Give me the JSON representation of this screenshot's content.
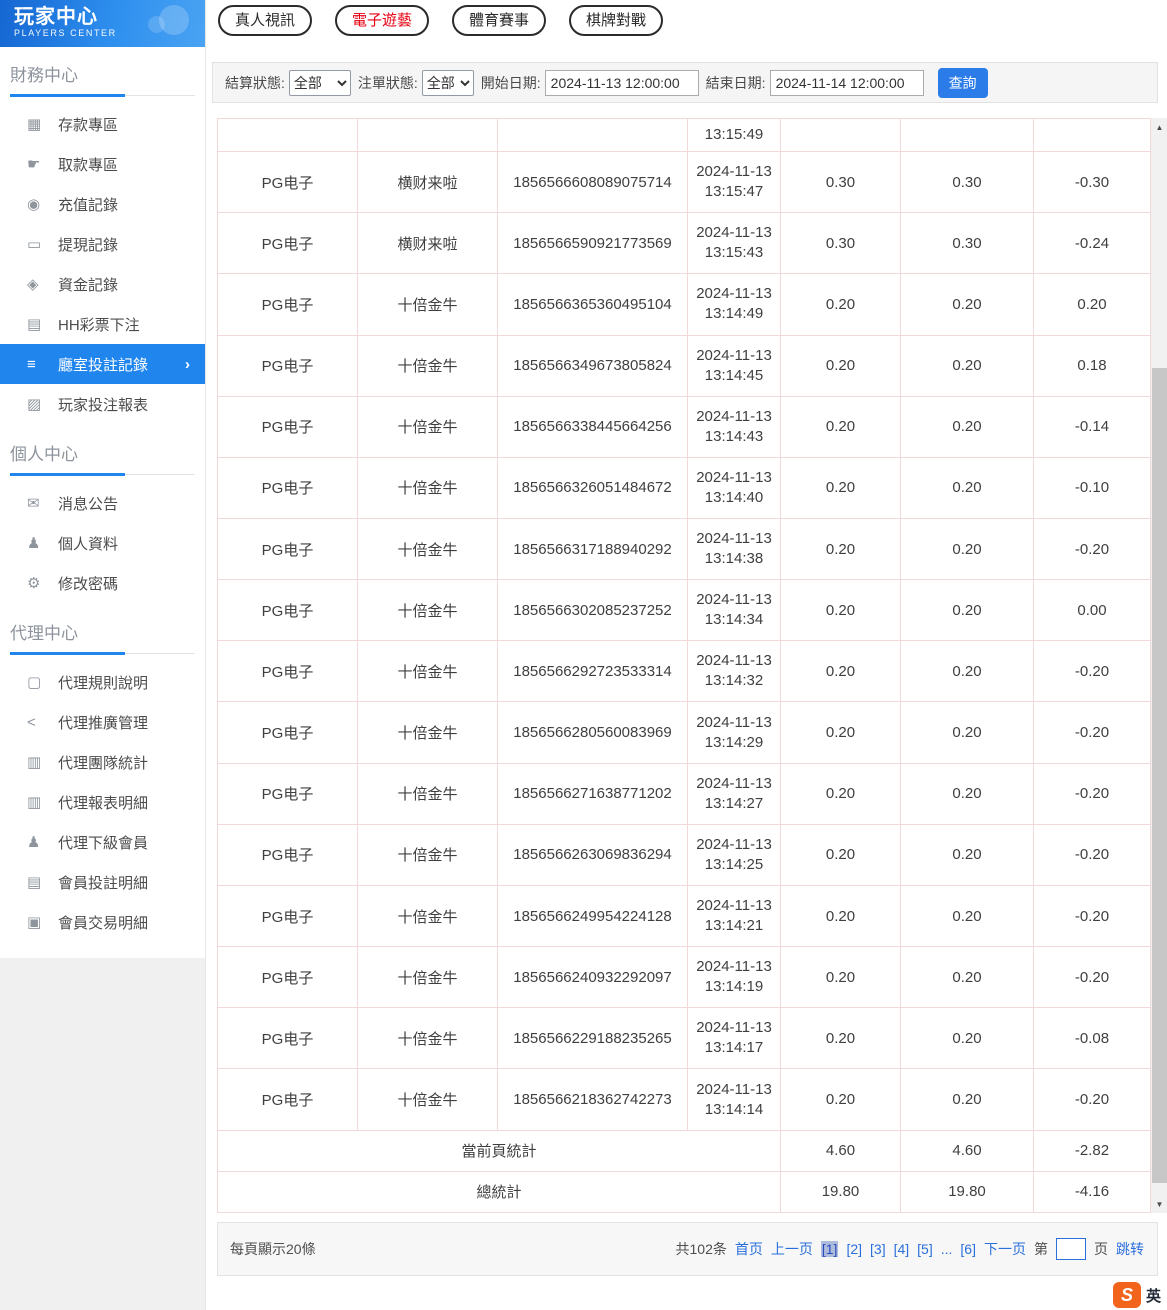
{
  "sidebar": {
    "logo": {
      "title": "玩家中心",
      "subtitle": "PLAYERS CENTER"
    },
    "sections": [
      {
        "title": "財務中心",
        "items": [
          {
            "label": "存款專區",
            "icon": "deposit-card-icon",
            "glyph": "▦"
          },
          {
            "label": "取款專區",
            "icon": "withdraw-hand-icon",
            "glyph": "☛"
          },
          {
            "label": "充值記錄",
            "icon": "recharge-moneybag-icon",
            "glyph": "◉"
          },
          {
            "label": "提現記錄",
            "icon": "withdrawal-wallet-icon",
            "glyph": "▭"
          },
          {
            "label": "資金記錄",
            "icon": "funds-purse-icon",
            "glyph": "◈"
          },
          {
            "label": "HH彩票下注",
            "icon": "lottery-doc-icon",
            "glyph": "▤"
          },
          {
            "label": "廳室投註記錄",
            "icon": "bet-records-list-icon",
            "glyph": "≡",
            "active": true,
            "arrow": "›"
          },
          {
            "label": "玩家投注報表",
            "icon": "report-chart-icon",
            "glyph": "▨"
          }
        ]
      },
      {
        "title": "個人中心",
        "items": [
          {
            "label": "消息公告",
            "icon": "bell-icon",
            "glyph": "✉"
          },
          {
            "label": "個人資料",
            "icon": "person-icon",
            "glyph": "♟"
          },
          {
            "label": "修改密碼",
            "icon": "gear-icon",
            "glyph": "⚙"
          }
        ]
      },
      {
        "title": "代理中心",
        "items": [
          {
            "label": "代理規則說明",
            "icon": "agent-rules-doc-icon",
            "glyph": "▢"
          },
          {
            "label": "代理推廣管理",
            "icon": "agent-promo-share-icon",
            "glyph": "<"
          },
          {
            "label": "代理團隊統計",
            "icon": "agent-team-stats-icon",
            "glyph": "▥"
          },
          {
            "label": "代理報表明細",
            "icon": "agent-report-icon",
            "glyph": "▥"
          },
          {
            "label": "代理下級會員",
            "icon": "agent-members-icon",
            "glyph": "♟"
          },
          {
            "label": "會員投註明細",
            "icon": "member-bets-icon",
            "glyph": "▤"
          },
          {
            "label": "會員交易明細",
            "icon": "member-transactions-icon",
            "glyph": "▣"
          }
        ]
      }
    ]
  },
  "tabs": [
    {
      "label": "真人視訊",
      "active": false
    },
    {
      "label": "電子遊藝",
      "active": true
    },
    {
      "label": "體育賽事",
      "active": false
    },
    {
      "label": "棋牌對戰",
      "active": false
    }
  ],
  "filters": {
    "settle_label": "結算狀態:",
    "settle_value": "全部",
    "order_label": "注單狀態:",
    "order_value": "全部",
    "start_label": "開始日期:",
    "start_value": "2024-11-13 12:00:00",
    "end_label": "結束日期:",
    "end_value": "2024-11-14 12:00:00",
    "search_label": "查詢"
  },
  "table": {
    "partial_row": {
      "time": "13:15:49"
    },
    "rows": [
      {
        "provider": "PG电子",
        "game": "横财来啦",
        "order_id": "1856566608089075714",
        "date": "2024-11-13",
        "time": "13:15:47",
        "bet": "0.30",
        "valid": "0.30",
        "profit": "-0.30"
      },
      {
        "provider": "PG电子",
        "game": "横财来啦",
        "order_id": "1856566590921773569",
        "date": "2024-11-13",
        "time": "13:15:43",
        "bet": "0.30",
        "valid": "0.30",
        "profit": "-0.24"
      },
      {
        "provider": "PG电子",
        "game": "十倍金牛",
        "order_id": "1856566365360495104",
        "date": "2024-11-13",
        "time": "13:14:49",
        "bet": "0.20",
        "valid": "0.20",
        "profit": "0.20"
      },
      {
        "provider": "PG电子",
        "game": "十倍金牛",
        "order_id": "1856566349673805824",
        "date": "2024-11-13",
        "time": "13:14:45",
        "bet": "0.20",
        "valid": "0.20",
        "profit": "0.18"
      },
      {
        "provider": "PG电子",
        "game": "十倍金牛",
        "order_id": "1856566338445664256",
        "date": "2024-11-13",
        "time": "13:14:43",
        "bet": "0.20",
        "valid": "0.20",
        "profit": "-0.14"
      },
      {
        "provider": "PG电子",
        "game": "十倍金牛",
        "order_id": "1856566326051484672",
        "date": "2024-11-13",
        "time": "13:14:40",
        "bet": "0.20",
        "valid": "0.20",
        "profit": "-0.10"
      },
      {
        "provider": "PG电子",
        "game": "十倍金牛",
        "order_id": "1856566317188940292",
        "date": "2024-11-13",
        "time": "13:14:38",
        "bet": "0.20",
        "valid": "0.20",
        "profit": "-0.20"
      },
      {
        "provider": "PG电子",
        "game": "十倍金牛",
        "order_id": "1856566302085237252",
        "date": "2024-11-13",
        "time": "13:14:34",
        "bet": "0.20",
        "valid": "0.20",
        "profit": "0.00"
      },
      {
        "provider": "PG电子",
        "game": "十倍金牛",
        "order_id": "1856566292723533314",
        "date": "2024-11-13",
        "time": "13:14:32",
        "bet": "0.20",
        "valid": "0.20",
        "profit": "-0.20"
      },
      {
        "provider": "PG电子",
        "game": "十倍金牛",
        "order_id": "1856566280560083969",
        "date": "2024-11-13",
        "time": "13:14:29",
        "bet": "0.20",
        "valid": "0.20",
        "profit": "-0.20"
      },
      {
        "provider": "PG电子",
        "game": "十倍金牛",
        "order_id": "1856566271638771202",
        "date": "2024-11-13",
        "time": "13:14:27",
        "bet": "0.20",
        "valid": "0.20",
        "profit": "-0.20"
      },
      {
        "provider": "PG电子",
        "game": "十倍金牛",
        "order_id": "1856566263069836294",
        "date": "2024-11-13",
        "time": "13:14:25",
        "bet": "0.20",
        "valid": "0.20",
        "profit": "-0.20"
      },
      {
        "provider": "PG电子",
        "game": "十倍金牛",
        "order_id": "1856566249954224128",
        "date": "2024-11-13",
        "time": "13:14:21",
        "bet": "0.20",
        "valid": "0.20",
        "profit": "-0.20"
      },
      {
        "provider": "PG电子",
        "game": "十倍金牛",
        "order_id": "1856566240932292097",
        "date": "2024-11-13",
        "time": "13:14:19",
        "bet": "0.20",
        "valid": "0.20",
        "profit": "-0.20"
      },
      {
        "provider": "PG电子",
        "game": "十倍金牛",
        "order_id": "1856566229188235265",
        "date": "2024-11-13",
        "time": "13:14:17",
        "bet": "0.20",
        "valid": "0.20",
        "profit": "-0.08"
      },
      {
        "provider": "PG电子",
        "game": "十倍金牛",
        "order_id": "1856566218362742273",
        "date": "2024-11-13",
        "time": "13:14:14",
        "bet": "0.20",
        "valid": "0.20",
        "profit": "-0.20"
      }
    ],
    "summary": [
      {
        "label": "當前頁統計",
        "bet": "4.60",
        "valid": "4.60",
        "profit": "-2.82"
      },
      {
        "label": "總統計",
        "bet": "19.80",
        "valid": "19.80",
        "profit": "-4.16"
      }
    ]
  },
  "icons": {
    "scroll_up": "▲",
    "scroll_down": "▼"
  },
  "pagination": {
    "per_page": "每頁顯示20條",
    "total_label": "共102条",
    "first_label": "首页",
    "prev_label": "上一页",
    "pages": [
      {
        "label": "[1]",
        "current": true
      },
      {
        "label": "[2]"
      },
      {
        "label": "[3]"
      },
      {
        "label": "[4]"
      },
      {
        "label": "[5]"
      },
      {
        "label": "..."
      },
      {
        "label": "[6]"
      }
    ],
    "next_label": "下一页",
    "jump_prefix": "第",
    "jump_value": "",
    "jump_suffix": "页",
    "jump_action": "跳转"
  },
  "badge": {
    "logo_letter": "S",
    "lang_label": "英"
  }
}
